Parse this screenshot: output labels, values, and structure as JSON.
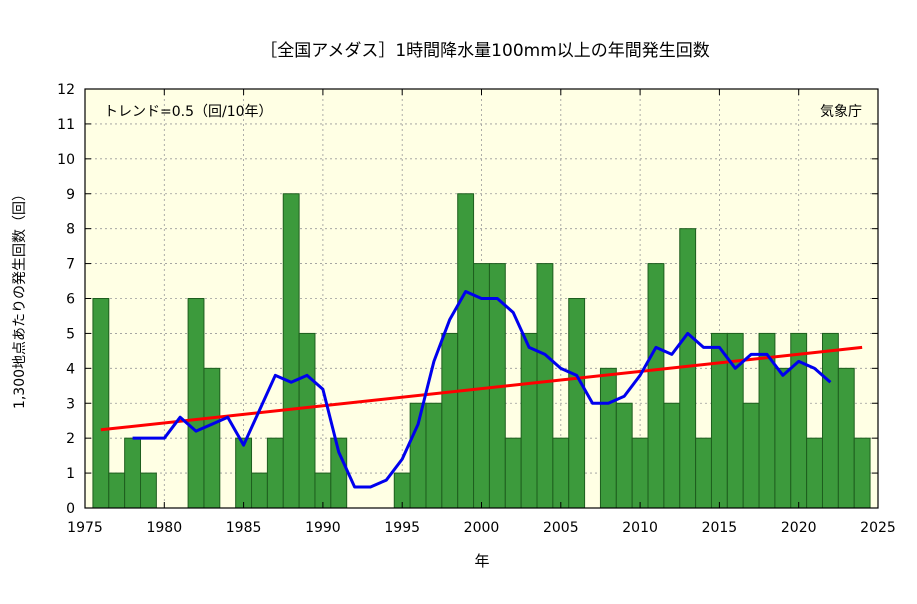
{
  "chart_data": {
    "type": "bar",
    "title": "［全国アメダス］1時間降水量100mm以上の年間発生回数",
    "xlabel": "年",
    "ylabel": "1,300地点あたりの発生回数（回）",
    "trend_label": "トレンド=0.5（回/10年）",
    "source": "気象庁",
    "xlim": [
      1975,
      2025
    ],
    "ylim": [
      0,
      12
    ],
    "x_ticks": [
      1975,
      1980,
      1985,
      1990,
      1995,
      2000,
      2005,
      2010,
      2015,
      2020,
      2025
    ],
    "y_ticks": [
      0,
      1,
      2,
      3,
      4,
      5,
      6,
      7,
      8,
      9,
      10,
      11,
      12
    ],
    "grid": true,
    "colors": {
      "bar_fill": "#3c9a3c",
      "bar_stroke": "#1e5e1e",
      "background": "#ffffe4",
      "moving_average": "#0000ee",
      "trend": "#ff0000",
      "grid": "#999999"
    },
    "bars": {
      "x": [
        1976,
        1977,
        1978,
        1979,
        1980,
        1981,
        1982,
        1983,
        1984,
        1985,
        1986,
        1987,
        1988,
        1989,
        1990,
        1991,
        1992,
        1993,
        1994,
        1995,
        1996,
        1997,
        1998,
        1999,
        2000,
        2001,
        2002,
        2003,
        2004,
        2005,
        2006,
        2007,
        2008,
        2009,
        2010,
        2011,
        2012,
        2013,
        2014,
        2015,
        2016,
        2017,
        2018,
        2019,
        2020,
        2021,
        2022,
        2023,
        2024
      ],
      "values": [
        6,
        1,
        2,
        1,
        0,
        0,
        6,
        4,
        0,
        2,
        1,
        2,
        9,
        5,
        1,
        2,
        0,
        0,
        0,
        1,
        3,
        3,
        5,
        9,
        7,
        7,
        2,
        5,
        7,
        2,
        6,
        0,
        4,
        3,
        2,
        7,
        3,
        8,
        2,
        5,
        5,
        3,
        5,
        4,
        5,
        2,
        5,
        4,
        2
      ]
    },
    "moving_average": {
      "x": [
        1978,
        1979,
        1980,
        1981,
        1982,
        1983,
        1984,
        1985,
        1986,
        1987,
        1988,
        1989,
        1990,
        1991,
        1992,
        1993,
        1994,
        1995,
        1996,
        1997,
        1998,
        1999,
        2000,
        2001,
        2002,
        2003,
        2004,
        2005,
        2006,
        2007,
        2008,
        2009,
        2010,
        2011,
        2012,
        2013,
        2014,
        2015,
        2016,
        2017,
        2018,
        2019,
        2020,
        2021,
        2022
      ],
      "values": [
        2.0,
        2.0,
        2.0,
        2.6,
        2.2,
        2.4,
        2.6,
        1.8,
        2.8,
        3.8,
        3.6,
        3.8,
        3.4,
        1.6,
        0.6,
        0.6,
        0.8,
        1.4,
        2.4,
        4.2,
        5.4,
        6.2,
        6.0,
        6.0,
        5.6,
        4.6,
        4.4,
        4.0,
        3.8,
        3.0,
        3.0,
        3.2,
        3.8,
        4.6,
        4.4,
        5.0,
        4.6,
        4.6,
        4.0,
        4.4,
        4.4,
        3.8,
        4.2,
        4.0,
        3.6
      ]
    },
    "trend": {
      "x": [
        1976,
        2024
      ],
      "values": [
        2.24,
        4.6
      ]
    }
  }
}
